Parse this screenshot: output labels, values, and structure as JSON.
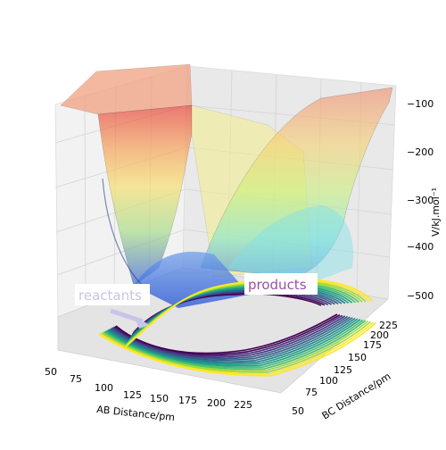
{
  "chart_data": {
    "type": "surface",
    "title": "",
    "xlabel": "AB Distance/pm",
    "ylabel": "BC Distance/pm",
    "zlabel": "V/kJ.mol⁻¹",
    "xticks": [
      "50",
      "75",
      "100",
      "125",
      "150",
      "175",
      "200",
      "225"
    ],
    "yticks": [
      "50",
      "75",
      "100",
      "125",
      "150",
      "175",
      "200",
      "225"
    ],
    "zticks": [
      "-100",
      "-200",
      "-300",
      "-400",
      "-500"
    ],
    "xlim": [
      50,
      240
    ],
    "ylim": [
      50,
      240
    ],
    "zlim": [
      -560,
      -80
    ],
    "grid": true,
    "surface_colormap": "spectral-like (blue low, green, yellow, orange, red high)",
    "contour_colormap": "viridis",
    "annotations": [
      {
        "text": "reactants",
        "color": "#c8c4e8"
      },
      {
        "text": "products",
        "color": "#9b4ea8"
      }
    ]
  }
}
